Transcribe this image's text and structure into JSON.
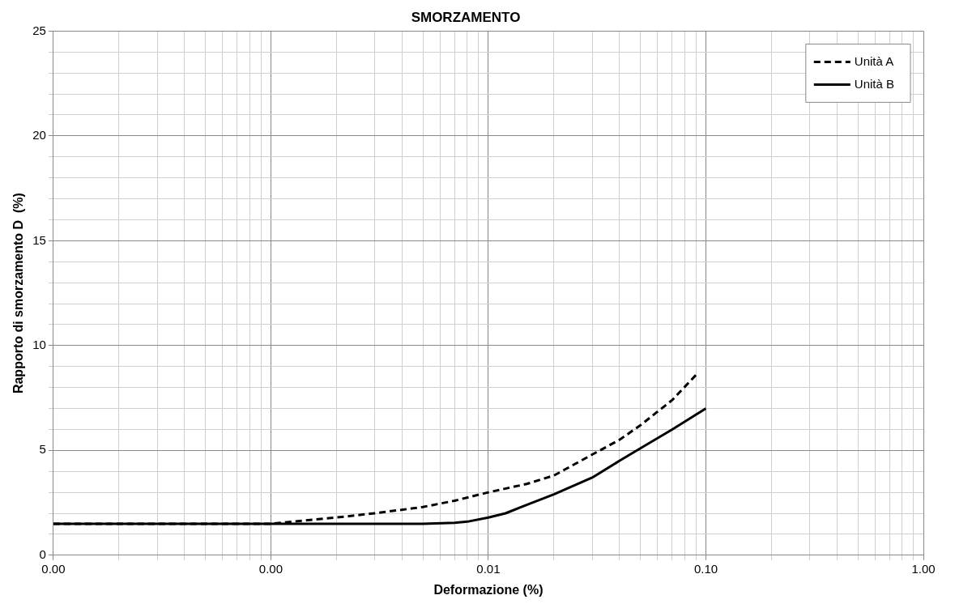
{
  "chart_data": {
    "type": "line",
    "title": "SMORZAMENTO",
    "xlabel": "Deformazione (%)",
    "ylabel": "Rapporto di smorzamento D  (%)",
    "log": "x",
    "grid": true,
    "legend": "top right",
    "marker": "none",
    "xlim": [
      0.0001,
      1
    ],
    "xticks": [
      {
        "value": 0.0001,
        "label": "0.00"
      },
      {
        "value": 0.0002,
        "label": null
      },
      {
        "value": 0.0003,
        "label": null
      },
      {
        "value": 0.0004,
        "label": null
      },
      {
        "value": 0.0005,
        "label": null
      },
      {
        "value": 0.0006,
        "label": null
      },
      {
        "value": 0.0007,
        "label": null
      },
      {
        "value": 0.0008,
        "label": null
      },
      {
        "value": 0.0009,
        "label": null
      },
      {
        "value": 0.001,
        "label": "0.00"
      },
      {
        "value": 0.002,
        "label": null
      },
      {
        "value": 0.003,
        "label": null
      },
      {
        "value": 0.004,
        "label": null
      },
      {
        "value": 0.005,
        "label": null
      },
      {
        "value": 0.006,
        "label": null
      },
      {
        "value": 0.007,
        "label": null
      },
      {
        "value": 0.008,
        "label": null
      },
      {
        "value": 0.009,
        "label": null
      },
      {
        "value": 0.01,
        "label": "0.01"
      },
      {
        "value": 0.02,
        "label": null
      },
      {
        "value": 0.03,
        "label": null
      },
      {
        "value": 0.04,
        "label": null
      },
      {
        "value": 0.05,
        "label": null
      },
      {
        "value": 0.06,
        "label": null
      },
      {
        "value": 0.07,
        "label": null
      },
      {
        "value": 0.08,
        "label": null
      },
      {
        "value": 0.09,
        "label": null
      },
      {
        "value": 0.1,
        "label": "0.10"
      },
      {
        "value": 0.2,
        "label": null
      },
      {
        "value": 0.3,
        "label": null
      },
      {
        "value": 0.4,
        "label": null
      },
      {
        "value": 0.5,
        "label": null
      },
      {
        "value": 0.6,
        "label": null
      },
      {
        "value": 0.7,
        "label": null
      },
      {
        "value": 0.8,
        "label": null
      },
      {
        "value": 0.9,
        "label": null
      },
      {
        "value": 1,
        "label": "1.00"
      }
    ],
    "ylim": [
      0,
      25
    ],
    "yticks": [
      0,
      {
        "value": 1,
        "label": null
      },
      {
        "value": 2,
        "label": null
      },
      {
        "value": 3,
        "label": null
      },
      {
        "value": 4,
        "label": null
      },
      5,
      {
        "value": 6,
        "label": null
      },
      {
        "value": 7,
        "label": null
      },
      {
        "value": 8,
        "label": null
      },
      {
        "value": 9,
        "label": null
      },
      10,
      {
        "value": 11,
        "label": null
      },
      {
        "value": 12,
        "label": null
      },
      {
        "value": 13,
        "label": null
      },
      {
        "value": 14,
        "label": null
      },
      15,
      {
        "value": 16,
        "label": null
      },
      {
        "value": 17,
        "label": null
      },
      {
        "value": 18,
        "label": null
      },
      {
        "value": 19,
        "label": null
      },
      20,
      {
        "value": 21,
        "label": null
      },
      {
        "value": 22,
        "label": null
      },
      {
        "value": 23,
        "label": null
      },
      {
        "value": 24,
        "label": null
      },
      25
    ],
    "series": [
      {
        "name": "Unità A",
        "color": "#000000",
        "line_style": "dashed",
        "x": [
          0.0001,
          0.0005,
          0.001,
          0.002,
          0.003,
          0.005,
          0.007,
          0.01,
          0.015,
          0.02,
          0.03,
          0.04,
          0.05,
          0.07,
          0.092
        ],
        "values": [
          1.5,
          1.5,
          1.5,
          1.8,
          2.0,
          2.3,
          2.6,
          3.0,
          3.4,
          3.8,
          4.8,
          5.5,
          6.2,
          7.4,
          8.7
        ]
      },
      {
        "name": "Unità B",
        "color": "#000000",
        "line_style": "solid",
        "x": [
          0.0001,
          0.001,
          0.003,
          0.005,
          0.007,
          0.008,
          0.01,
          0.012,
          0.015,
          0.02,
          0.03,
          0.04,
          0.05,
          0.07,
          0.1
        ],
        "values": [
          1.5,
          1.5,
          1.5,
          1.5,
          1.55,
          1.6,
          1.8,
          2.0,
          2.4,
          2.9,
          3.7,
          4.5,
          5.1,
          6.0,
          7.0
        ]
      }
    ]
  }
}
